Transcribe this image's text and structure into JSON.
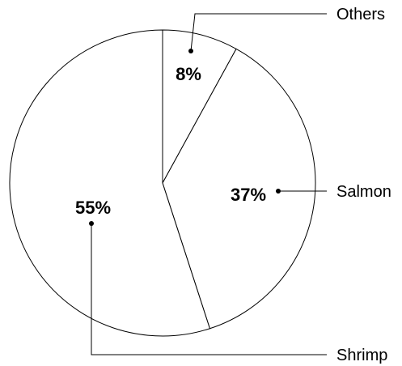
{
  "chart_data": {
    "type": "pie",
    "categories": [
      "Others",
      "Salmon",
      "Shrimp"
    ],
    "values": [
      8,
      37,
      55
    ],
    "value_labels": [
      "8%",
      "37%",
      "55%"
    ],
    "title": "",
    "legend": "none",
    "colors": {
      "fill": "#ffffff",
      "stroke": "#000000"
    }
  }
}
